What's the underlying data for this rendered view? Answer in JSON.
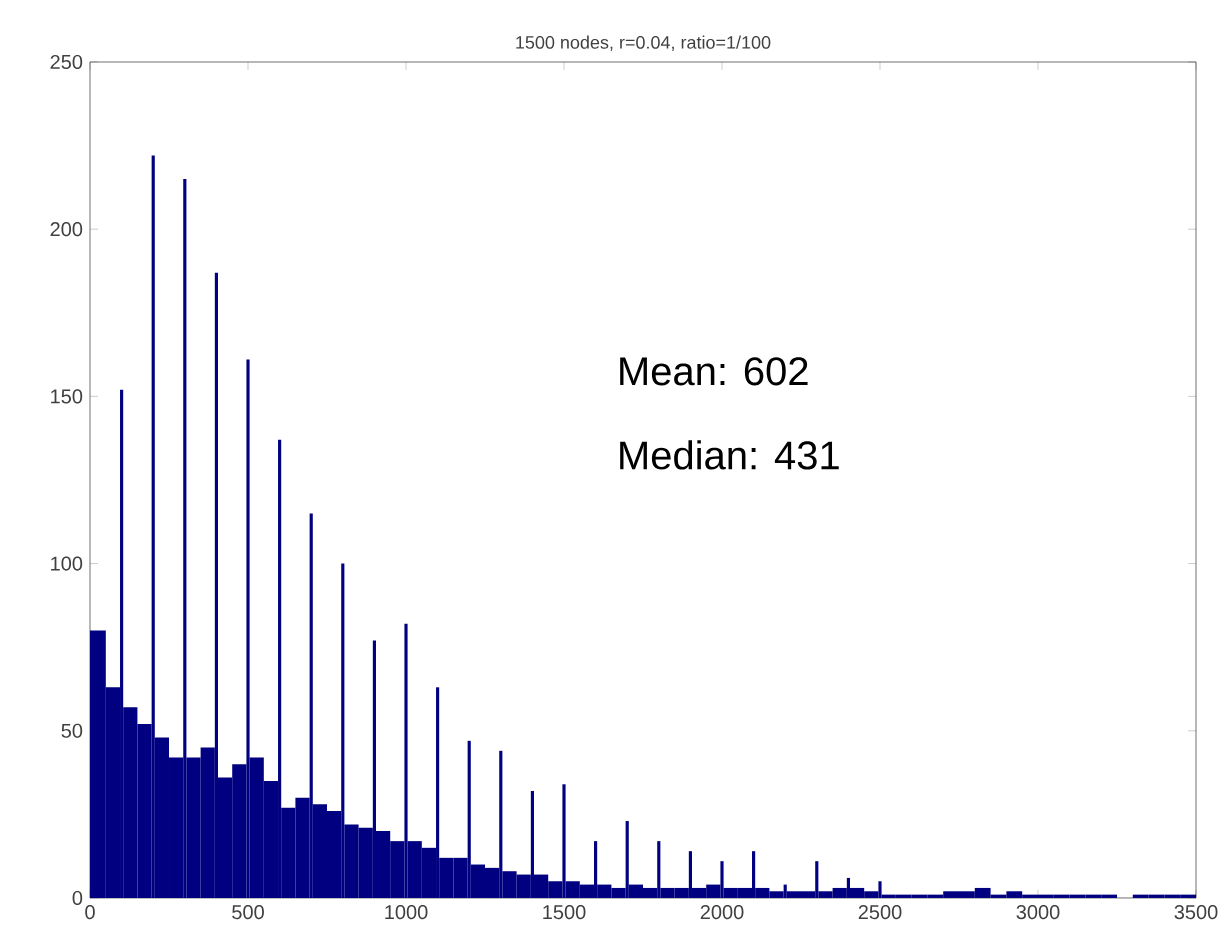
{
  "chart_data": {
    "type": "histogram",
    "title": "1500 nodes, r=0.04, ratio=1/100",
    "annotations": [
      "Mean: 602",
      "Median: 431"
    ],
    "bins": [
      0,
      50,
      95,
      105,
      150,
      195,
      205,
      250,
      295,
      305,
      350,
      395,
      405,
      450,
      495,
      505,
      550,
      595,
      605,
      650,
      695,
      705,
      750,
      795,
      805,
      850,
      895,
      905,
      950,
      995,
      1005,
      1050,
      1095,
      1105,
      1150,
      1195,
      1205,
      1250,
      1295,
      1305,
      1350,
      1395,
      1405,
      1450,
      1495,
      1505,
      1550,
      1595,
      1605,
      1650,
      1695,
      1705,
      1750,
      1795,
      1805,
      1850,
      1895,
      1905,
      1950,
      1995,
      2005,
      2050,
      2095,
      2105,
      2150,
      2195,
      2205,
      2250,
      2295,
      2305,
      2350,
      2395,
      2405,
      2450,
      2495,
      2505,
      2550,
      2600,
      2650,
      2700,
      2750,
      2800,
      2850,
      2900,
      2950,
      3000,
      3050,
      3100,
      3150,
      3200,
      3250,
      3300,
      3350,
      3400,
      3450,
      3500
    ],
    "values": [
      80,
      63,
      152,
      57,
      52,
      222,
      48,
      42,
      215,
      42,
      45,
      187,
      36,
      40,
      161,
      42,
      35,
      137,
      27,
      30,
      115,
      28,
      26,
      100,
      22,
      21,
      77,
      20,
      17,
      82,
      17,
      15,
      63,
      12,
      12,
      47,
      10,
      9,
      44,
      8,
      7,
      32,
      7,
      5,
      34,
      5,
      4,
      17,
      4,
      3,
      23,
      4,
      3,
      17,
      3,
      3,
      14,
      3,
      4,
      11,
      3,
      3,
      14,
      3,
      2,
      4,
      2,
      2,
      11,
      2,
      3,
      6,
      3,
      2,
      5,
      1,
      1,
      1,
      1,
      2,
      2,
      3,
      1,
      2,
      1,
      1,
      1,
      1,
      1,
      1,
      0,
      1,
      1,
      1,
      1
    ],
    "color": "#000080",
    "xlim": [
      0,
      3500
    ],
    "ylim": [
      0,
      250
    ],
    "xticks": [
      0,
      500,
      1000,
      1500,
      2000,
      2500,
      3000,
      3500
    ],
    "yticks": [
      0,
      50,
      100,
      150,
      200,
      250
    ],
    "grid": false
  }
}
